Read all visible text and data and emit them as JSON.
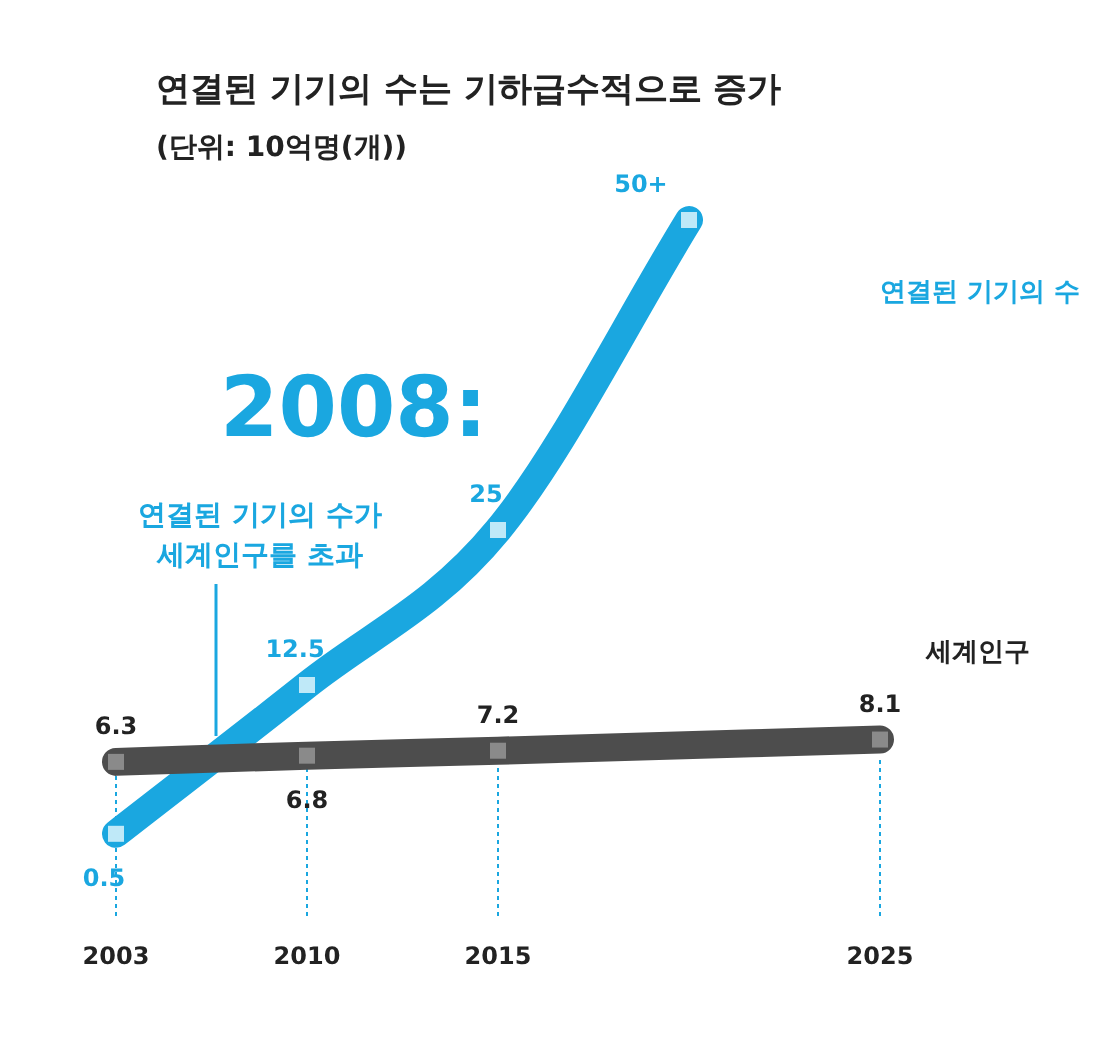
{
  "chart_data": {
    "type": "line",
    "title": "연결된 기기의 수는 기하급수적으로 증가",
    "subtitle": "(단위: 10억명(개))",
    "annotations": [
      "2008:",
      "연결된 기기의 수가\n세계인구를 초과"
    ],
    "categories": [
      "2003",
      "2010",
      "2015",
      null,
      "2025"
    ],
    "marker": "square",
    "ref_lines": [
      {
        "axis": "x",
        "value": "2003",
        "color": "#1aa7e0",
        "line_style": "dotted"
      },
      {
        "axis": "x",
        "value": "2010",
        "color": "#1aa7e0",
        "line_style": "dotted"
      },
      {
        "axis": "x",
        "value": "2015",
        "color": "#1aa7e0",
        "line_style": "dotted"
      },
      {
        "axis": "x",
        "value": "2025",
        "color": "#1aa7e0",
        "line_style": "dotted"
      }
    ],
    "series": [
      {
        "name": "연결된 기기의 수",
        "color": "#1aa7e0",
        "values": [
          0.5,
          12.5,
          25,
          50,
          null
        ],
        "value_labels": [
          "0.5",
          "12.5",
          "25",
          "50+",
          null
        ]
      },
      {
        "name": "세계인구",
        "color": "#4d4d4d",
        "values": [
          6.3,
          6.8,
          7.2,
          null,
          8.1
        ],
        "value_labels": [
          "6.3",
          "6.8",
          "7.2",
          null,
          "8.1"
        ]
      }
    ]
  }
}
